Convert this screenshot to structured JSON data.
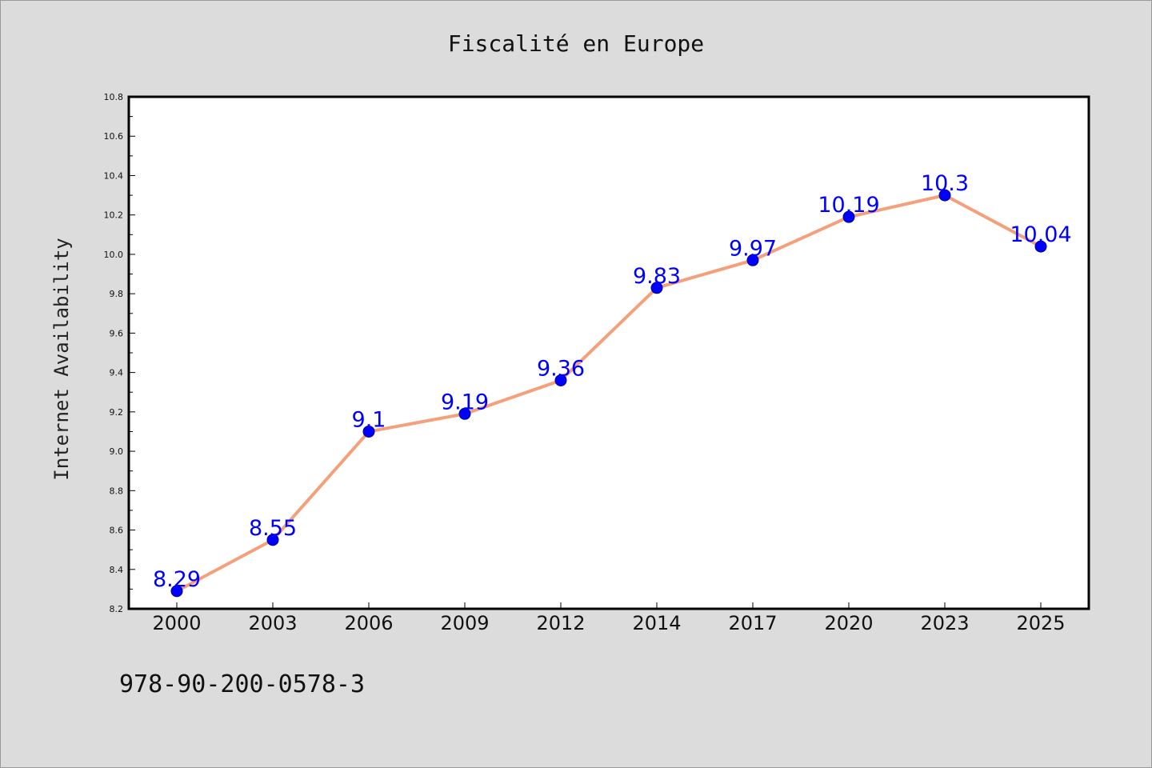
{
  "chart_data": {
    "type": "line",
    "title": "Fiscalité en Europe",
    "xlabel": "",
    "ylabel": "Internet Availability",
    "categories": [
      "2000",
      "2003",
      "2006",
      "2009",
      "2012",
      "2014",
      "2017",
      "2020",
      "2023",
      "2025"
    ],
    "series": [
      {
        "values": [
          8.29,
          8.55,
          9.1,
          9.19,
          9.36,
          9.83,
          9.97,
          10.19,
          10.3,
          10.04
        ]
      }
    ],
    "data_labels": [
      "8.29",
      "8.55",
      "9.1",
      "9.19",
      "9.36",
      "9.83",
      "9.97",
      "10.19",
      "10.3",
      "10.04"
    ],
    "ylim": [
      8.2,
      10.8
    ],
    "yticks": [
      "8.2",
      "8.4",
      "8.6",
      "8.8",
      "9.0",
      "9.2",
      "9.4",
      "9.6",
      "9.8",
      "10.0",
      "10.2",
      "10.4",
      "10.6",
      "10.8"
    ],
    "grid": false,
    "legend": "none",
    "colors": {
      "line": "#f4a07a",
      "marker": "#0000ff",
      "marker_edge": "#00008b",
      "labels": "#0000ff",
      "background": "#dcdcdc",
      "plot_background": "#ffffff"
    }
  },
  "footer_text": "978-90-200-0578-3"
}
